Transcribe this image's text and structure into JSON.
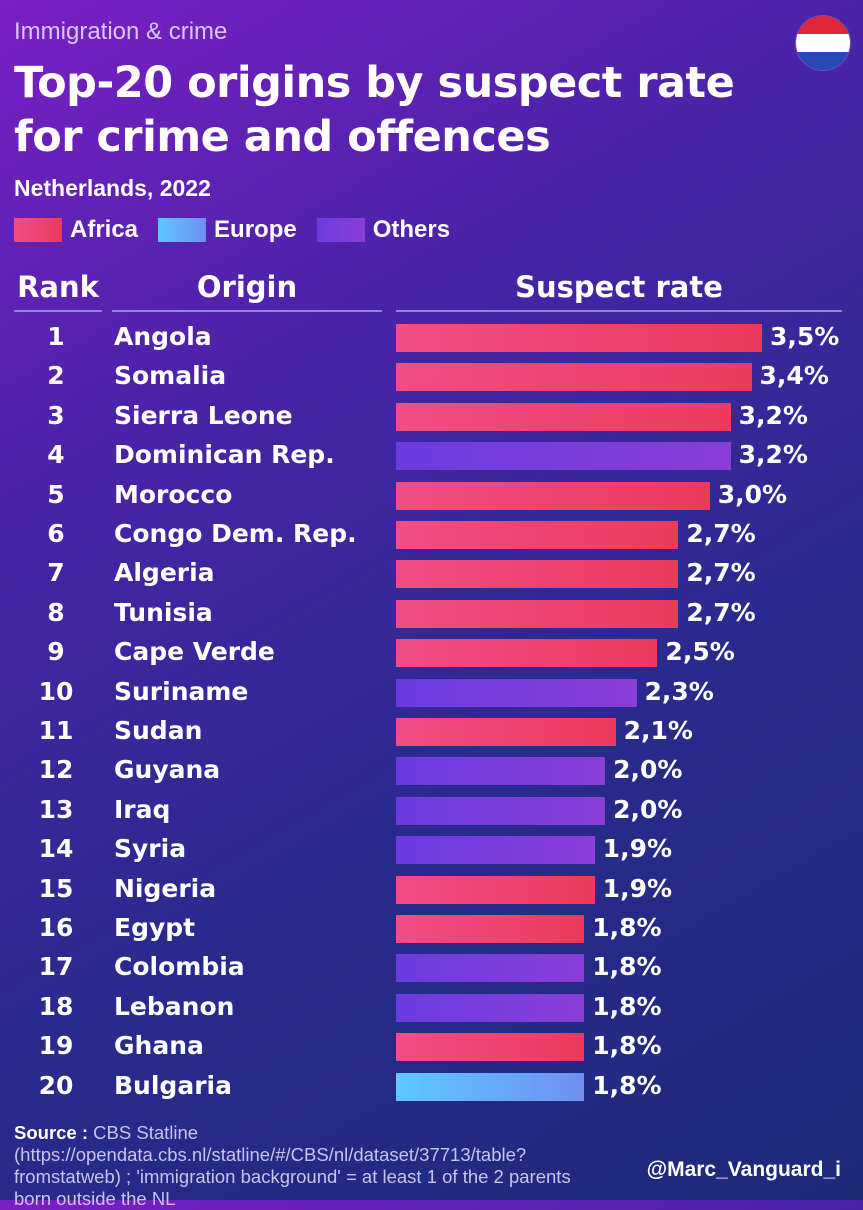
{
  "header": {
    "kicker": "Immigration & crime",
    "title": "Top-20 origins by suspect rate for crime and offences",
    "subtitle": "Netherlands, 2022"
  },
  "flag": {
    "name": "netherlands-flag-icon",
    "colors": [
      "#e0253b",
      "#ffffff",
      "#2a48b8"
    ]
  },
  "legend": [
    {
      "label": "Africa",
      "color": "#ee3e6a"
    },
    {
      "label": "Europe",
      "color": "#5fb0ff"
    },
    {
      "label": "Others",
      "color": "#7a3ee0"
    }
  ],
  "table": {
    "col_rank": "Rank",
    "col_origin": "Origin",
    "col_rate": "Suspect rate"
  },
  "chart_data": {
    "type": "bar",
    "orientation": "horizontal",
    "title": "Top-20 origins by suspect rate for crime and offences",
    "subtitle": "Netherlands, 2022",
    "unit": "%",
    "xlim": [
      0,
      3.5
    ],
    "legend": [
      "Africa",
      "Europe",
      "Others"
    ],
    "rows": [
      {
        "rank": "1",
        "origin": "Angola",
        "value": 3.5,
        "label": "3,5%",
        "group": "Africa"
      },
      {
        "rank": "2",
        "origin": "Somalia",
        "value": 3.4,
        "label": "3,4%",
        "group": "Africa"
      },
      {
        "rank": "3",
        "origin": "Sierra Leone",
        "value": 3.2,
        "label": "3,2%",
        "group": "Africa"
      },
      {
        "rank": "4",
        "origin": "Dominican Rep.",
        "value": 3.2,
        "label": "3,2%",
        "group": "Others"
      },
      {
        "rank": "5",
        "origin": "Morocco",
        "value": 3.0,
        "label": "3,0%",
        "group": "Africa"
      },
      {
        "rank": "6",
        "origin": "Congo Dem. Rep.",
        "value": 2.7,
        "label": "2,7%",
        "group": "Africa"
      },
      {
        "rank": "7",
        "origin": "Algeria",
        "value": 2.7,
        "label": "2,7%",
        "group": "Africa"
      },
      {
        "rank": "8",
        "origin": "Tunisia",
        "value": 2.7,
        "label": "2,7%",
        "group": "Africa"
      },
      {
        "rank": "9",
        "origin": "Cape Verde",
        "value": 2.5,
        "label": "2,5%",
        "group": "Africa"
      },
      {
        "rank": "10",
        "origin": "Suriname",
        "value": 2.3,
        "label": "2,3%",
        "group": "Others"
      },
      {
        "rank": "11",
        "origin": "Sudan",
        "value": 2.1,
        "label": "2,1%",
        "group": "Africa"
      },
      {
        "rank": "12",
        "origin": "Guyana",
        "value": 2.0,
        "label": "2,0%",
        "group": "Others"
      },
      {
        "rank": "13",
        "origin": "Iraq",
        "value": 2.0,
        "label": "2,0%",
        "group": "Others"
      },
      {
        "rank": "14",
        "origin": "Syria",
        "value": 1.9,
        "label": "1,9%",
        "group": "Others"
      },
      {
        "rank": "15",
        "origin": "Nigeria",
        "value": 1.9,
        "label": "1,9%",
        "group": "Africa"
      },
      {
        "rank": "16",
        "origin": "Egypt",
        "value": 1.8,
        "label": "1,8%",
        "group": "Africa"
      },
      {
        "rank": "17",
        "origin": "Colombia",
        "value": 1.8,
        "label": "1,8%",
        "group": "Others"
      },
      {
        "rank": "18",
        "origin": "Lebanon",
        "value": 1.8,
        "label": "1,8%",
        "group": "Others"
      },
      {
        "rank": "19",
        "origin": "Ghana",
        "value": 1.8,
        "label": "1,8%",
        "group": "Africa"
      },
      {
        "rank": "20",
        "origin": "Bulgaria",
        "value": 1.8,
        "label": "1,8%",
        "group": "Europe"
      }
    ]
  },
  "footer": {
    "source_label": "Source :",
    "source_text": " CBS Statline (https://opendata.cbs.nl/statline/#/CBS/nl/dataset/37713/table?fromstatweb) ; 'immigration background' = at least 1 of the 2 parents born outside the NL",
    "handle": "@Marc_Vanguard_i"
  }
}
